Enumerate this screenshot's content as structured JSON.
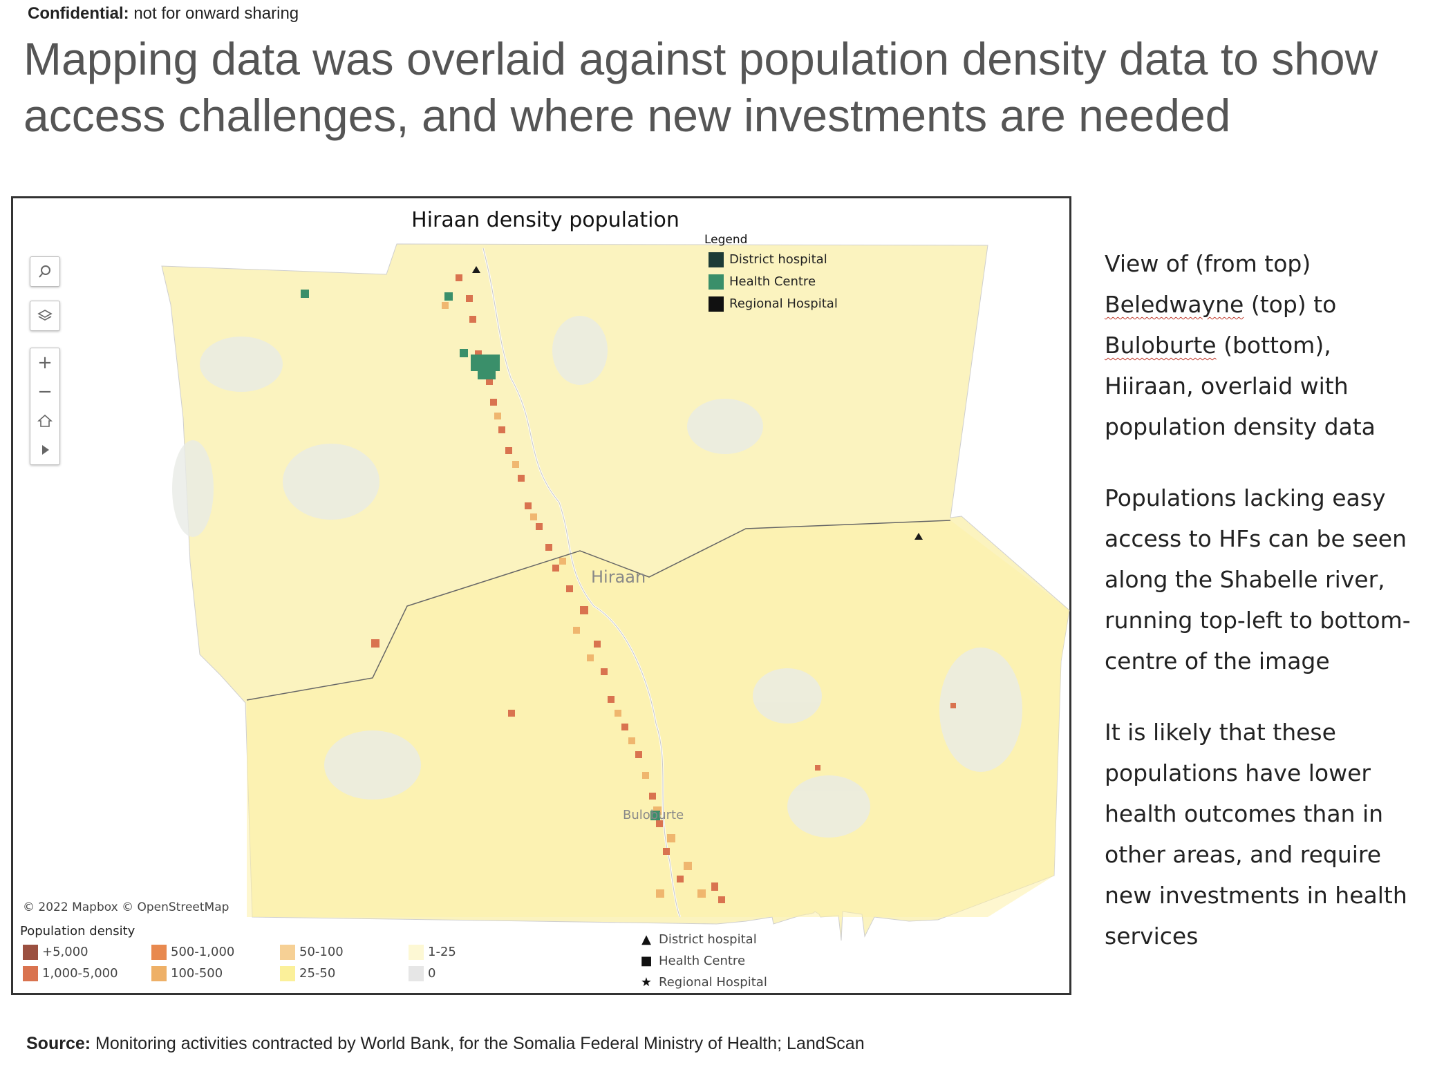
{
  "confidential": {
    "label": "Confidential:",
    "text": "not for onward sharing"
  },
  "headline": "Mapping data was overlaid against population density data to show access challenges, and where new investments are needed",
  "map": {
    "title": "Hiraan density population",
    "inset_legend": {
      "title": "Legend",
      "items": [
        {
          "label": "District hospital",
          "color": "#1d3b36"
        },
        {
          "label": "Health Centre",
          "color": "#3a8f6a"
        },
        {
          "label": "Regional Hospital",
          "color": "#111111"
        }
      ]
    },
    "place_labels": {
      "region": "Hiraan",
      "town": "Buloburte"
    },
    "attribution": "© 2022 Mapbox  © OpenStreetMap",
    "controls": {
      "search": "search-icon",
      "layers": "layers-icon",
      "zoom_in": "+",
      "zoom_out": "−",
      "home": "home-icon",
      "play": "play-icon"
    }
  },
  "population_density": {
    "title": "Population density",
    "bins": [
      {
        "label": "+5,000",
        "color": "#9b5040"
      },
      {
        "label": "1,000-5,000",
        "color": "#d9734f"
      },
      {
        "label": "500-1,000",
        "color": "#e8894f"
      },
      {
        "label": "100-500",
        "color": "#eeb067"
      },
      {
        "label": "50-100",
        "color": "#f6d095"
      },
      {
        "label": "25-50",
        "color": "#fbf09a"
      },
      {
        "label": "1-25",
        "color": "#fdf8d4"
      },
      {
        "label": "0",
        "color": "#e6e6e6"
      }
    ]
  },
  "symbol_legend": [
    {
      "symbol": "▲",
      "label": "District hospital"
    },
    {
      "symbol": "■",
      "label": "Health Centre"
    },
    {
      "symbol": "★",
      "label": "Regional Hospital"
    }
  ],
  "side_text": {
    "p1_prefix": "View of (from top)",
    "p1_place1": "Beledwayne",
    "p1_mid": "(top) to",
    "p1_place2": "Buloburte",
    "p1_suffix": "(bottom), Hiiraan, overlaid with population density data",
    "p2": "Populations lacking easy access to HFs can be seen along the Shabelle river, running top-left to bottom-centre of the image",
    "p3": "It is likely that these populations have lower health outcomes than in other areas, and require new investments in health services"
  },
  "source": {
    "label": "Source:",
    "text": "Monitoring activities contracted by World Bank, for the Somalia Federal Ministry of Health; LandScan"
  }
}
